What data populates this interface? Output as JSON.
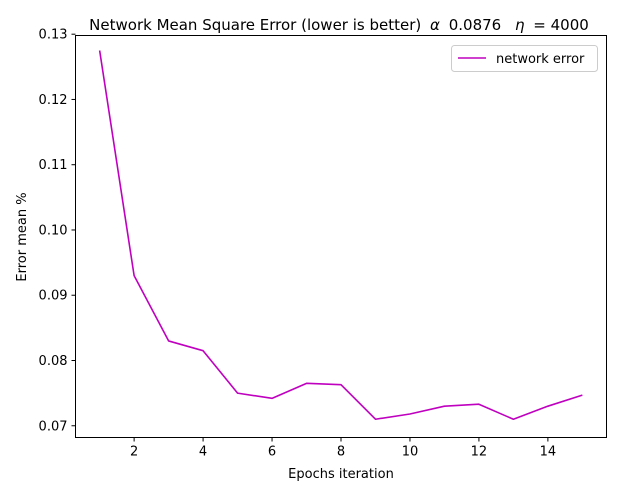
{
  "chart_data": {
    "type": "line",
    "title": "Network Mean Square Error (lower is better)",
    "title_alpha_symbol": "α",
    "title_alpha_value": "0.0876",
    "title_eta_symbol": "η",
    "title_eta_value": "= 4000",
    "xlabel": "Epochs iteration",
    "ylabel": "Error mean %",
    "xlim": [
      0.3,
      15.7
    ],
    "ylim": [
      0.0682,
      0.1298
    ],
    "xticks": [
      2,
      4,
      6,
      8,
      10,
      12,
      14
    ],
    "yticks": [
      0.07,
      0.08,
      0.09,
      0.1,
      0.11,
      0.12,
      0.13
    ],
    "ytick_labels": [
      "0.07",
      "0.08",
      "0.09",
      "0.10",
      "0.11",
      "0.12",
      "0.13"
    ],
    "grid": false,
    "legend_position": "top-right",
    "series": [
      {
        "name": "network error",
        "color": "#bf00bf",
        "x": [
          1,
          2,
          3,
          4,
          5,
          6,
          7,
          8,
          9,
          10,
          11,
          12,
          13,
          14,
          15
        ],
        "y": [
          0.1275,
          0.093,
          0.083,
          0.0815,
          0.075,
          0.0742,
          0.0765,
          0.0763,
          0.071,
          0.0718,
          0.073,
          0.0733,
          0.071,
          0.073,
          0.0747
        ]
      }
    ]
  }
}
